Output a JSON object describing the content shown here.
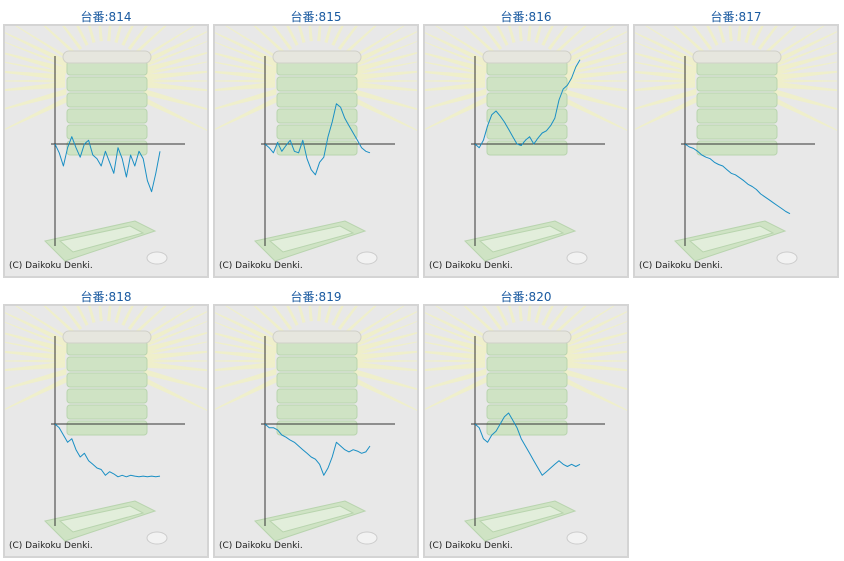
{
  "credit_text": "(C) Daikoku Denki.",
  "line_color": "#1a8fc4",
  "axis_color": "#333333",
  "chart_data": [
    {
      "type": "line",
      "title": "台番:814",
      "x": [
        0,
        4,
        8,
        12,
        16,
        20,
        24,
        28,
        32,
        36,
        40,
        44,
        48,
        52,
        56,
        60,
        64,
        68,
        72,
        76,
        80,
        84,
        88,
        92,
        96,
        100
      ],
      "y": [
        0,
        -12,
        -30,
        -5,
        10,
        -5,
        -18,
        0,
        5,
        -15,
        -20,
        -30,
        -10,
        -25,
        -40,
        -5,
        -20,
        -45,
        -15,
        -30,
        -10,
        -20,
        -50,
        -65,
        -40,
        -10
      ]
    },
    {
      "type": "line",
      "title": "台番:815",
      "x": [
        0,
        4,
        8,
        12,
        16,
        20,
        24,
        28,
        32,
        36,
        40,
        44,
        48,
        52,
        56,
        60,
        64,
        68,
        72,
        76,
        80,
        84,
        88,
        92,
        96,
        100
      ],
      "y": [
        0,
        -5,
        -12,
        2,
        -10,
        -2,
        5,
        -10,
        -12,
        5,
        -20,
        -35,
        -42,
        -25,
        -18,
        10,
        30,
        55,
        50,
        35,
        25,
        15,
        5,
        -5,
        -10,
        -12
      ]
    },
    {
      "type": "line",
      "title": "台番:816",
      "x": [
        0,
        4,
        8,
        12,
        16,
        20,
        24,
        28,
        32,
        36,
        40,
        44,
        48,
        52,
        56,
        60,
        64,
        68,
        72,
        76,
        80,
        84,
        88,
        92,
        96,
        100
      ],
      "y": [
        0,
        -5,
        5,
        25,
        40,
        45,
        38,
        30,
        20,
        10,
        0,
        -2,
        5,
        10,
        0,
        8,
        15,
        18,
        25,
        35,
        60,
        75,
        80,
        90,
        105,
        115
      ]
    },
    {
      "type": "line",
      "title": "台番:817",
      "x": [
        0,
        4,
        8,
        12,
        16,
        20,
        24,
        28,
        32,
        36,
        40,
        44,
        48,
        52,
        56,
        60,
        64,
        68,
        72,
        76,
        80,
        84,
        88,
        92,
        96,
        100
      ],
      "y": [
        0,
        -4,
        -6,
        -10,
        -15,
        -18,
        -20,
        -25,
        -28,
        -30,
        -35,
        -40,
        -42,
        -46,
        -50,
        -55,
        -58,
        -62,
        -68,
        -72,
        -76,
        -80,
        -84,
        -88,
        -92,
        -95
      ]
    },
    {
      "type": "line",
      "title": "台番:818",
      "x": [
        0,
        4,
        8,
        12,
        16,
        20,
        24,
        28,
        32,
        36,
        40,
        44,
        48,
        52,
        56,
        60,
        64,
        68,
        72,
        76,
        80,
        84,
        88,
        92,
        96,
        100
      ],
      "y": [
        0,
        -5,
        -15,
        -25,
        -20,
        -35,
        -45,
        -40,
        -50,
        -55,
        -60,
        -62,
        -70,
        -65,
        -68,
        -72,
        -70,
        -72,
        -70,
        -71,
        -72,
        -71,
        -72,
        -71,
        -72,
        -71
      ]
    },
    {
      "type": "line",
      "title": "台番:819",
      "x": [
        0,
        4,
        8,
        12,
        16,
        20,
        24,
        28,
        32,
        36,
        40,
        44,
        48,
        52,
        56,
        60,
        64,
        68,
        72,
        76,
        80,
        84,
        88,
        92,
        96,
        100
      ],
      "y": [
        0,
        -5,
        -5,
        -8,
        -15,
        -18,
        -22,
        -25,
        -30,
        -35,
        -40,
        -45,
        -48,
        -55,
        -70,
        -60,
        -45,
        -25,
        -30,
        -35,
        -38,
        -35,
        -37,
        -40,
        -38,
        -30
      ]
    },
    {
      "type": "line",
      "title": "台番:820",
      "x": [
        0,
        4,
        8,
        12,
        16,
        20,
        24,
        28,
        32,
        36,
        40,
        44,
        48,
        52,
        56,
        60,
        64,
        68,
        72,
        76,
        80,
        84,
        88,
        92,
        96,
        100
      ],
      "y": [
        0,
        -5,
        -20,
        -25,
        -15,
        -10,
        0,
        10,
        15,
        5,
        -5,
        -20,
        -30,
        -40,
        -50,
        -60,
        -70,
        -65,
        -60,
        -55,
        -50,
        -55,
        -58,
        -55,
        -58,
        -55
      ]
    }
  ]
}
